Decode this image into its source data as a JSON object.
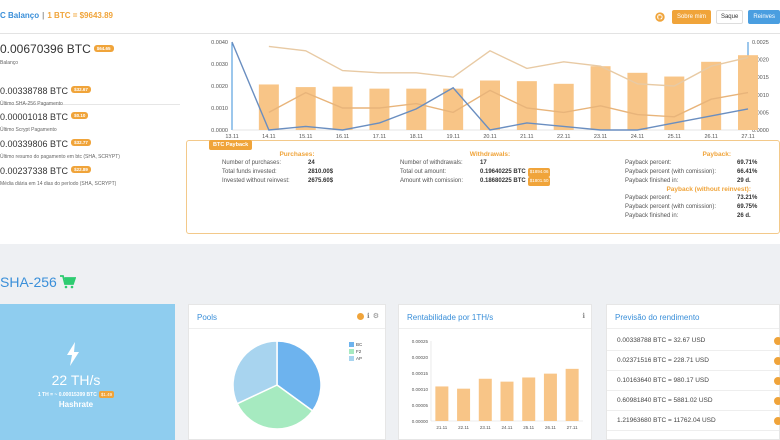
{
  "header": {
    "title": "C Balanço",
    "separator": "|",
    "price": "1 BTC = $9643.89",
    "buttons": {
      "about": "Sobre mim",
      "exit": "Saque",
      "invest": "Reinves"
    }
  },
  "balance": {
    "main_value": "0.00670396 BTC",
    "main_badge": "$64.65",
    "main_label": "Balanço",
    "stats": [
      {
        "value": "0.00338788 BTC",
        "badge": "$32.67",
        "label": "Último SHA-256 Pagamento"
      },
      {
        "value": "0.00001018 BTC",
        "badge": "$0.10",
        "label": "Último Scrypt Pagamento"
      },
      {
        "value": "0.00339806 BTC",
        "badge": "$32.77",
        "label": "Último resumo do pagamento em btc (SHA, SCRYPT)"
      },
      {
        "value": "0.00237338 BTC",
        "badge": "$22.89",
        "label": "Média diária em 14 dias do período (SHA, SCRYPT)"
      }
    ]
  },
  "chart_data": {
    "type": "bar",
    "categories": [
      "13.11",
      "14.11",
      "15.11",
      "16.11",
      "17.11",
      "18.11",
      "19.11",
      "20.11",
      "21.11",
      "22.11",
      "23.11",
      "24.11",
      "25.11",
      "26.11",
      "27.11"
    ],
    "yticks_left": [
      "0.0040",
      "0.0030",
      "0.0020",
      "0.0010",
      "0.0000"
    ],
    "yticks_right": [
      "0.0025",
      "0.0020",
      "0.0015",
      "0.0010",
      "0.0005",
      "0.0000"
    ],
    "ylim_left": [
      0,
      0.004
    ],
    "ylim_right": [
      0,
      0.0025
    ],
    "bars": [
      null,
      0.00207,
      0.00195,
      0.00197,
      0.00188,
      0.00188,
      0.00188,
      0.00225,
      0.00222,
      0.0021,
      0.0029,
      0.0026,
      0.00243,
      0.0031,
      0.0034
    ],
    "series": [
      {
        "color": "#e8caa4",
        "axis": "left",
        "values": [
          null,
          0.0038,
          0.0036,
          0.0027,
          0.0026,
          0.0026,
          0.0024,
          0.0036,
          0.0028,
          0.0031,
          0.0029,
          0.0021,
          0.002,
          0.0029,
          0.0033
        ]
      },
      {
        "color": "#e8b47a",
        "axis": "left",
        "values": [
          null,
          0.0008,
          0.0017,
          0.001,
          0.001,
          0.0012,
          0.0008,
          0.0018,
          0.001,
          0.0008,
          0.0011,
          0.0007,
          0.0006,
          0.0014,
          0.0017
        ]
      },
      {
        "color": "#6a8ec0",
        "axis": "right",
        "values": [
          0.0025,
          0.0,
          0.0001,
          0.0,
          0.0002,
          0.0006,
          0.0012,
          0.0,
          0.0002,
          0.0001,
          0.0,
          0.0,
          0.0002,
          0.0004,
          0.0006
        ]
      }
    ]
  },
  "payback": {
    "tag": "BTC Payback",
    "purchases": {
      "title": "Purchases:",
      "rows": [
        {
          "label": "Number of purchases:",
          "value": "24"
        },
        {
          "label": "Total funds invested:",
          "value": "2810.00$"
        },
        {
          "label": "Invested without reinvest:",
          "value": "2675.60$"
        }
      ]
    },
    "withdrawals": {
      "title": "Withdrawals:",
      "rows": [
        {
          "label": "Number of withdrawals:",
          "value": "17",
          "badge": ""
        },
        {
          "label": "Total out amount:",
          "value": "0.19640225 BTC",
          "badge": "$1894.06"
        },
        {
          "label": "Amount with comission:",
          "value": "0.18680225 BTC",
          "badge": "$1801.50"
        }
      ]
    },
    "payback_col": {
      "title": "Payback:",
      "rows": [
        {
          "label": "Payback percent:",
          "value": "69.71%"
        },
        {
          "label": "Payback percent (with comission):",
          "value": "66.41%"
        },
        {
          "label": "Payback finished in:",
          "value": "29 d."
        }
      ],
      "title2": "Payback (without reinvest):",
      "rows2": [
        {
          "label": "Payback percent:",
          "value": "73.21%"
        },
        {
          "label": "Payback percent (with comission):",
          "value": "69.75%"
        },
        {
          "label": "Payback finished in:",
          "value": "26 d."
        }
      ]
    }
  },
  "sha": {
    "title": "SHA-256",
    "hashrate": "22 TH/s",
    "rate_line": "1 TH = ~ 0.00015399 BTC",
    "rate_badge": "$1.49",
    "label": "Hashrate"
  },
  "pools": {
    "title": "Pools",
    "legend": [
      "BC",
      "F2",
      "AP"
    ],
    "slices": [
      {
        "name": "BC",
        "value": 35,
        "color": "#6db3ee"
      },
      {
        "name": "F2",
        "value": 33,
        "color": "#a6eac0"
      },
      {
        "name": "AP",
        "value": 32,
        "color": "#a8d4ef"
      }
    ]
  },
  "profit": {
    "title": "Rentabilidade por 1TH/s",
    "yticks": [
      "0.00025",
      "0.00020",
      "0.00015",
      "0.00010",
      "0.00005",
      "0.00000"
    ],
    "ylim": [
      0,
      0.00025
    ],
    "categories": [
      "21.11",
      "22.11",
      "23.11",
      "24.11",
      "25.11",
      "26.11",
      "27.11"
    ],
    "values": [
      0.000108,
      0.000101,
      0.000132,
      0.000123,
      0.000136,
      0.000148,
      0.000163
    ]
  },
  "forecast": {
    "title": "Previsão do rendimento",
    "rows": [
      "0.00338788 BTC = 32.67 USD",
      "0.02371516 BTC = 228.71 USD",
      "0.10163640 BTC = 980.17 USD",
      "0.60981840 BTC = 5881.02 USD",
      "1.21963680 BTC = 11762.04 USD"
    ]
  },
  "colors": {
    "accent": "#f0a43a",
    "brand": "#3a8fd9",
    "hash_bg": "#8fcdef"
  },
  "icons": [
    "github-icon",
    "cart-icon",
    "bolt-icon",
    "info-icon",
    "gear-icon"
  ]
}
